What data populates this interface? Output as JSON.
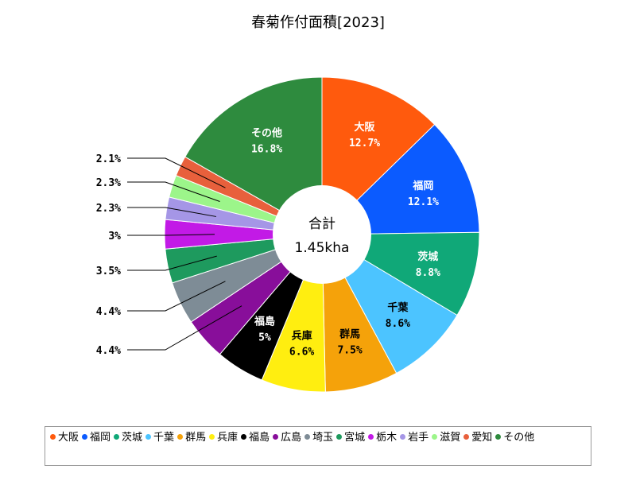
{
  "chart_data": {
    "type": "pie",
    "title": "春菊作付面積[2023]",
    "center_label": "合計",
    "center_value": "1.45kha",
    "slices": [
      {
        "name": "大阪",
        "value": 12.7,
        "label": "12.7%",
        "color": "#ff5a0d"
      },
      {
        "name": "福岡",
        "value": 12.1,
        "label": "12.1%",
        "color": "#0b5bff"
      },
      {
        "name": "茨城",
        "value": 8.8,
        "label": "8.8%",
        "color": "#10a878"
      },
      {
        "name": "千葉",
        "value": 8.6,
        "label": "8.6%",
        "color": "#4cc4ff"
      },
      {
        "name": "群馬",
        "value": 7.5,
        "label": "7.5%",
        "color": "#f5a20a"
      },
      {
        "name": "兵庫",
        "value": 6.6,
        "label": "6.6%",
        "color": "#ffee10"
      },
      {
        "name": "福島",
        "value": 5.0,
        "label": "5%",
        "color": "#000000"
      },
      {
        "name": "広島",
        "value": 4.4,
        "label": "4.4%",
        "color": "#880e9a"
      },
      {
        "name": "埼玉",
        "value": 4.4,
        "label": "4.4%",
        "color": "#7e8c96"
      },
      {
        "name": "宮城",
        "value": 3.5,
        "label": "3.5%",
        "color": "#1e9a5e"
      },
      {
        "name": "栃木",
        "value": 3.0,
        "label": "3%",
        "color": "#c21ae6"
      },
      {
        "name": "岩手",
        "value": 2.3,
        "label": "2.3%",
        "color": "#a596e6"
      },
      {
        "name": "滋賀",
        "value": 2.3,
        "label": "2.3%",
        "color": "#9cf58a"
      },
      {
        "name": "愛知",
        "value": 2.1,
        "label": "2.1%",
        "color": "#e8603c"
      },
      {
        "name": "その他",
        "value": 16.8,
        "label": "16.8%",
        "color": "#2e8b3e"
      }
    ]
  }
}
